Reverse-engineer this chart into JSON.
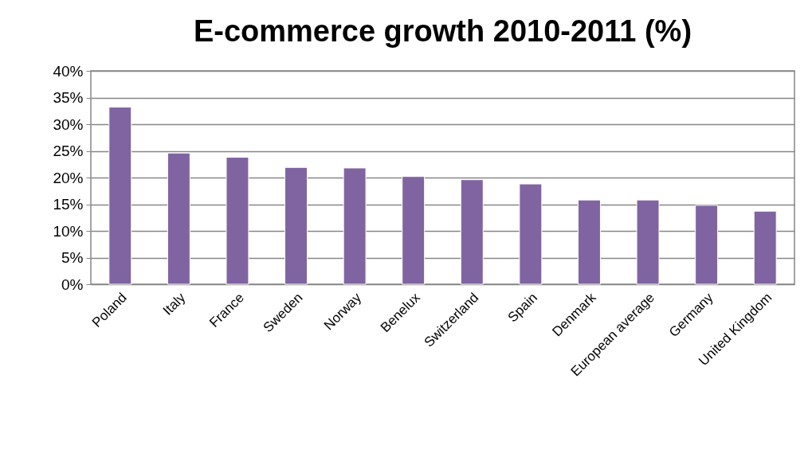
{
  "chart_data": {
    "type": "bar",
    "title": "E-commerce growth 2010-2011 (%)",
    "categories": [
      "Poland",
      "Italy",
      "France",
      "Sweden",
      "Norway",
      "Benelux",
      "Switzerland",
      "Spain",
      "Denmark",
      "European average",
      "Germany",
      "United Kingdom"
    ],
    "values": [
      33.2,
      24.6,
      23.8,
      21.9,
      21.8,
      20.2,
      19.6,
      18.8,
      15.8,
      15.8,
      14.8,
      13.7
    ],
    "color": "#8064a2",
    "ylim": [
      0,
      40
    ],
    "yticks": [
      {
        "value": 0,
        "label": "0%"
      },
      {
        "value": 5,
        "label": "5%"
      },
      {
        "value": 10,
        "label": "10%"
      },
      {
        "value": 15,
        "label": "15%"
      },
      {
        "value": 20,
        "label": "20%"
      },
      {
        "value": 25,
        "label": "25%"
      },
      {
        "value": 30,
        "label": "30%"
      },
      {
        "value": 35,
        "label": "35%"
      },
      {
        "value": 40,
        "label": "40%"
      }
    ],
    "grid": "y"
  }
}
